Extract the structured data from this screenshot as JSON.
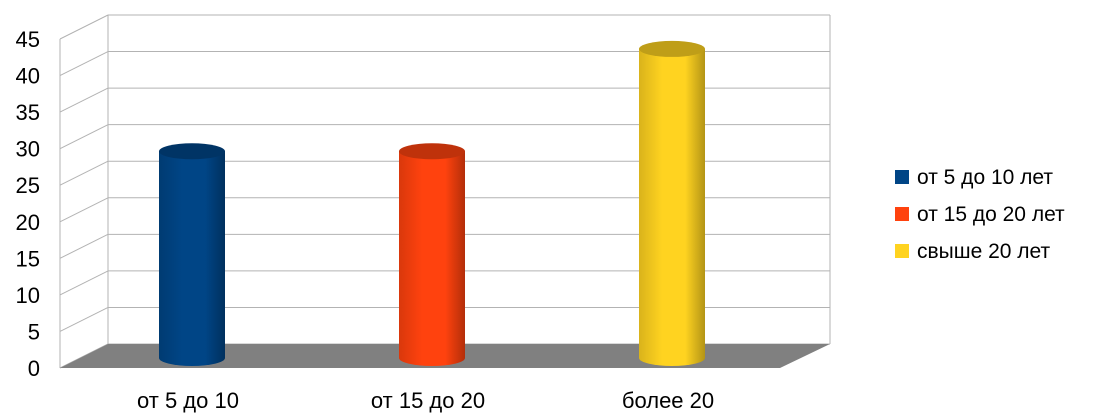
{
  "chart_data": {
    "type": "bar",
    "style": "3d-cylinder",
    "categories": [
      "от 5 до 10",
      "от 15 до 20",
      "более 20"
    ],
    "series": [
      {
        "name": "от 5 до 10 лет",
        "color": "#004586",
        "values": [
          28,
          null,
          null
        ]
      },
      {
        "name": "от 15 до 20 лет",
        "color": "#ff420e",
        "values": [
          null,
          28,
          null
        ]
      },
      {
        "name": "свыше 20 лет",
        "color": "#ffd320",
        "values": [
          null,
          null,
          42
        ]
      }
    ],
    "ylim": [
      0,
      45
    ],
    "yticks": [
      "0",
      "5",
      "10",
      "15",
      "20",
      "25",
      "30",
      "35",
      "40",
      "45"
    ],
    "grid": true,
    "legend_position": "right",
    "floor_color": "#808080"
  }
}
